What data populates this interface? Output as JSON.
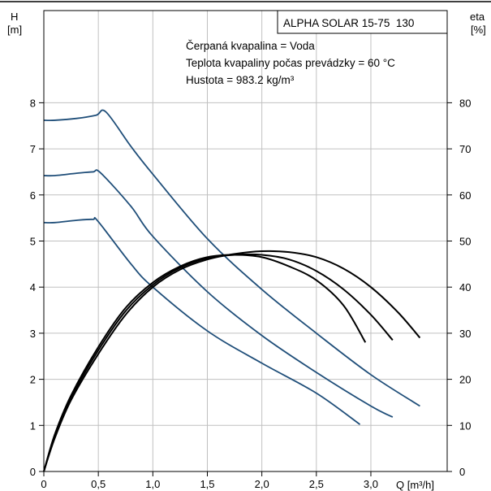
{
  "chart_data": {
    "type": "line",
    "title": "ALPHA SOLAR 15-75  130",
    "annotations": [
      "Čerpaná kvapalina = Voda",
      "Teplota kvapaliny počas prevádzky = 60 °C",
      "Hustota = 983.2 kg/m³"
    ],
    "x_axis": {
      "label": "Q [m³/h]",
      "range": [
        0,
        3.7
      ],
      "ticks": [
        0,
        0.5,
        1.0,
        1.5,
        2.0,
        2.5,
        3.0
      ],
      "tick_labels": [
        "0",
        "0,5",
        "1,0",
        "1,5",
        "2,0",
        "2,5",
        "3,0"
      ]
    },
    "y_axis_left": {
      "label_line1": "H",
      "label_line2": "[m]",
      "range": [
        0,
        10
      ],
      "ticks": [
        0,
        1,
        2,
        3,
        4,
        5,
        6,
        7,
        8
      ],
      "tick_labels": [
        "0",
        "1",
        "2",
        "3",
        "4",
        "5",
        "6",
        "7",
        "8"
      ]
    },
    "y_axis_right": {
      "label_line1": "eta",
      "label_line2": "[%]",
      "range": [
        0,
        100
      ],
      "ticks": [
        0,
        10,
        20,
        30,
        40,
        50,
        60,
        70,
        80
      ],
      "tick_labels": [
        "0",
        "10",
        "20",
        "30",
        "40",
        "50",
        "60",
        "70",
        "80"
      ]
    },
    "grid": true,
    "head_series": [
      {
        "color": "#1f4e79",
        "x": [
          0,
          0.1,
          0.3,
          0.48,
          0.57,
          0.8,
          1.0,
          1.5,
          2.0,
          2.5,
          3.0,
          3.45
        ],
        "y": [
          7.62,
          7.62,
          7.66,
          7.73,
          7.8,
          7.05,
          6.45,
          5.05,
          3.95,
          3.0,
          2.1,
          1.42
        ]
      },
      {
        "color": "#1f4e79",
        "x": [
          0,
          0.1,
          0.3,
          0.45,
          0.52,
          0.8,
          1.0,
          1.5,
          2.0,
          2.5,
          3.0,
          3.2
        ],
        "y": [
          6.42,
          6.42,
          6.47,
          6.5,
          6.48,
          5.75,
          5.1,
          3.9,
          2.95,
          2.15,
          1.42,
          1.18
        ]
      },
      {
        "color": "#1f4e79",
        "x": [
          0,
          0.1,
          0.3,
          0.45,
          0.5,
          0.8,
          1.0,
          1.5,
          2.0,
          2.5,
          2.9
        ],
        "y": [
          5.4,
          5.4,
          5.45,
          5.47,
          5.42,
          4.5,
          4.0,
          3.05,
          2.35,
          1.7,
          1.02
        ]
      }
    ],
    "eta_series": [
      {
        "color": "#000000",
        "x": [
          0,
          0.1,
          0.25,
          0.5,
          0.75,
          1.0,
          1.25,
          1.5,
          1.75,
          2.0,
          2.25,
          2.5,
          2.75,
          2.95
        ],
        "y": [
          0,
          8,
          16.5,
          27,
          35.5,
          41,
          44.5,
          46.5,
          47,
          46.5,
          44.5,
          41.5,
          36,
          28
        ]
      },
      {
        "color": "#000000",
        "x": [
          0,
          0.1,
          0.25,
          0.5,
          0.75,
          1.0,
          1.25,
          1.5,
          1.75,
          2.0,
          2.25,
          2.5,
          2.75,
          3.0,
          3.2
        ],
        "y": [
          0,
          7.6,
          16,
          26.3,
          34.8,
          40.5,
          44.2,
          46.3,
          47,
          47,
          46,
          43.5,
          39.5,
          34,
          28.5
        ]
      },
      {
        "color": "#000000",
        "x": [
          0,
          0.1,
          0.25,
          0.5,
          0.75,
          1.0,
          1.25,
          1.5,
          1.75,
          2.0,
          2.25,
          2.5,
          2.75,
          3.0,
          3.25,
          3.45
        ],
        "y": [
          0,
          7.2,
          15.5,
          25.5,
          34,
          40,
          43.8,
          46,
          47.2,
          47.8,
          47.6,
          46.5,
          44,
          40,
          34.5,
          29
        ]
      }
    ]
  }
}
